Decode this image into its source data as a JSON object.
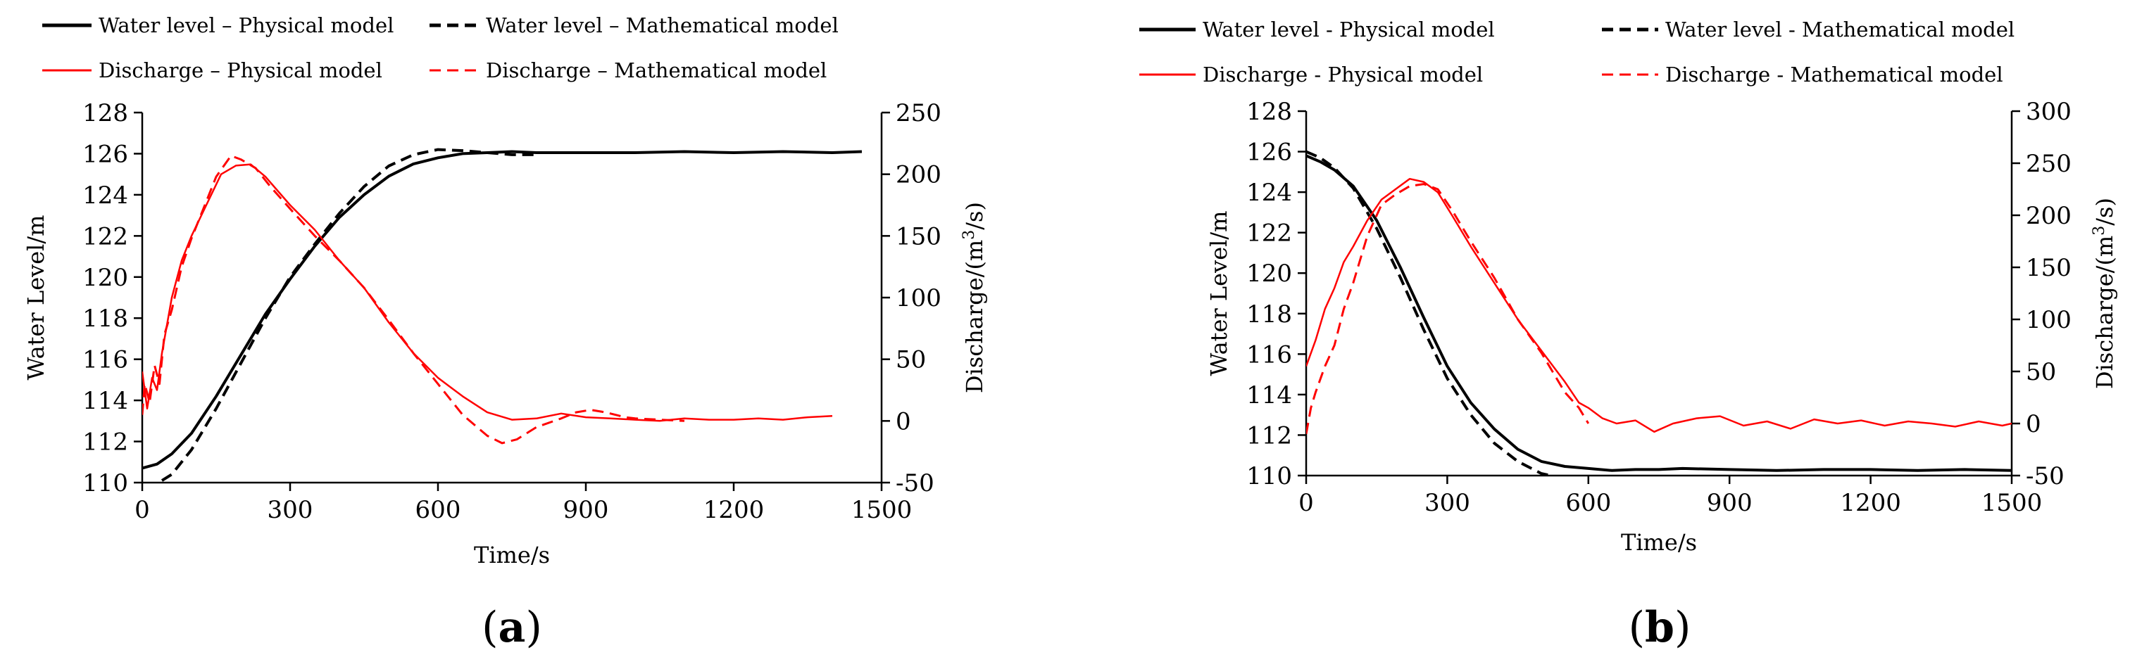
{
  "chart_data": [
    {
      "type": "line",
      "panel_label": "a",
      "xlabel": "Time/s",
      "ylabel_left": "Water Level/m",
      "ylabel_right_prefix": "Discharge/(m",
      "ylabel_right_sup": "3",
      "ylabel_right_suffix": "/s)",
      "xlim": [
        0,
        1500
      ],
      "xticks": [
        0,
        300,
        600,
        900,
        1200,
        1500
      ],
      "ylim_left": [
        110,
        128
      ],
      "yticks_left": [
        110,
        112,
        114,
        116,
        118,
        120,
        122,
        124,
        126,
        128
      ],
      "ylim_right": [
        -50,
        250
      ],
      "yticks_right": [
        -50,
        0,
        50,
        100,
        150,
        200,
        250
      ],
      "legend": [
        {
          "label": "Water level – Physical model",
          "color": "#000000",
          "style": "solid",
          "axis": "left"
        },
        {
          "label": "Water level – Mathematical model",
          "color": "#000000",
          "style": "dashed",
          "axis": "left"
        },
        {
          "label": "Discharge – Physical model",
          "color": "#ff0000",
          "style": "solid",
          "axis": "right"
        },
        {
          "label": "Discharge – Mathematical model",
          "color": "#ff0000",
          "style": "dashed",
          "axis": "right"
        }
      ],
      "series": [
        {
          "name": "Water level – Physical model",
          "axis": "left",
          "color": "#000000",
          "style": "solid",
          "width": 4,
          "x": [
            0,
            30,
            60,
            100,
            150,
            200,
            250,
            300,
            350,
            400,
            450,
            500,
            550,
            600,
            650,
            700,
            750,
            800,
            900,
            1000,
            1100,
            1200,
            1300,
            1400,
            1460
          ],
          "y": [
            110.7,
            110.9,
            111.4,
            112.4,
            114.2,
            116.2,
            118.2,
            119.9,
            121.5,
            122.9,
            124.0,
            124.9,
            125.5,
            125.8,
            126.0,
            126.05,
            126.1,
            126.05,
            126.05,
            126.05,
            126.1,
            126.05,
            126.1,
            126.05,
            126.1
          ]
        },
        {
          "name": "Water level – Mathematical model",
          "axis": "left",
          "color": "#000000",
          "style": "dashed",
          "width": 4,
          "x": [
            40,
            60,
            100,
            150,
            200,
            250,
            300,
            350,
            400,
            450,
            500,
            550,
            600,
            650,
            700,
            750,
            800
          ],
          "y": [
            110.1,
            110.4,
            111.6,
            113.6,
            115.8,
            118.0,
            120.0,
            121.6,
            123.1,
            124.4,
            125.4,
            125.95,
            126.2,
            126.15,
            126.05,
            125.95,
            125.95
          ]
        },
        {
          "name": "Discharge – Physical model",
          "axis": "right",
          "color": "#ff0000",
          "style": "solid",
          "width": 2.5,
          "x": [
            0,
            10,
            20,
            30,
            40,
            60,
            80,
            100,
            130,
            160,
            190,
            220,
            250,
            300,
            350,
            400,
            450,
            500,
            550,
            600,
            650,
            700,
            750,
            800,
            850,
            900,
            950,
            1000,
            1050,
            1100,
            1150,
            1200,
            1250,
            1300,
            1350,
            1400
          ],
          "y": [
            40,
            10,
            35,
            25,
            55,
            100,
            130,
            150,
            175,
            200,
            207,
            208,
            198,
            175,
            155,
            130,
            108,
            80,
            55,
            35,
            20,
            7,
            1,
            2,
            6,
            3,
            2,
            1,
            0,
            2,
            1,
            1,
            2,
            1,
            3,
            4
          ]
        },
        {
          "name": "Discharge – Mathematical model",
          "axis": "right",
          "color": "#ff0000",
          "style": "dashed",
          "width": 3,
          "x": [
            0,
            5,
            15,
            25,
            35,
            45,
            60,
            80,
            100,
            120,
            150,
            180,
            200,
            230,
            260,
            300,
            350,
            400,
            450,
            500,
            550,
            600,
            650,
            700,
            730,
            760,
            800,
            850,
            880,
            910,
            940,
            980,
            1000,
            1050,
            1100
          ],
          "y": [
            5,
            30,
            15,
            45,
            30,
            70,
            90,
            125,
            148,
            168,
            198,
            215,
            212,
            205,
            190,
            172,
            150,
            130,
            108,
            82,
            55,
            30,
            5,
            -12,
            -18,
            -15,
            -5,
            2,
            7,
            9,
            7,
            3,
            2,
            1,
            0
          ]
        }
      ]
    },
    {
      "type": "line",
      "panel_label": "b",
      "xlabel": "Time/s",
      "ylabel_left": "Water Level/m",
      "ylabel_right_prefix": "Discharge/(m",
      "ylabel_right_sup": "3",
      "ylabel_right_suffix": "/s)",
      "xlim": [
        0,
        1500
      ],
      "xticks": [
        0,
        300,
        600,
        900,
        1200,
        1500
      ],
      "ylim_left": [
        110,
        128
      ],
      "yticks_left": [
        110,
        112,
        114,
        116,
        118,
        120,
        122,
        124,
        126,
        128
      ],
      "ylim_right": [
        -50,
        300
      ],
      "yticks_right": [
        -50,
        0,
        50,
        100,
        150,
        200,
        250,
        300
      ],
      "legend": [
        {
          "label": "Water level - Physical model",
          "color": "#000000",
          "style": "solid",
          "axis": "left"
        },
        {
          "label": "Water level - Mathematical model",
          "color": "#000000",
          "style": "dashed",
          "axis": "left"
        },
        {
          "label": "Discharge - Physical model",
          "color": "#ff0000",
          "style": "solid",
          "axis": "right"
        },
        {
          "label": "Discharge - Mathematical model",
          "color": "#ff0000",
          "style": "dashed",
          "axis": "right"
        }
      ],
      "series": [
        {
          "name": "Water level - Physical model",
          "axis": "left",
          "color": "#000000",
          "style": "solid",
          "width": 4,
          "x": [
            0,
            30,
            60,
            100,
            150,
            200,
            250,
            300,
            350,
            400,
            450,
            500,
            550,
            600,
            650,
            700,
            750,
            800,
            900,
            1000,
            1100,
            1200,
            1300,
            1400,
            1500
          ],
          "y": [
            125.8,
            125.5,
            125.1,
            124.3,
            122.6,
            120.3,
            117.8,
            115.4,
            113.6,
            112.3,
            111.3,
            110.7,
            110.45,
            110.35,
            110.25,
            110.3,
            110.3,
            110.35,
            110.3,
            110.25,
            110.3,
            110.3,
            110.25,
            110.3,
            110.25
          ]
        },
        {
          "name": "Water level - Mathematical model",
          "axis": "left",
          "color": "#000000",
          "style": "dashed",
          "width": 4,
          "x": [
            0,
            30,
            60,
            100,
            150,
            200,
            250,
            300,
            350,
            400,
            450,
            500,
            520
          ],
          "y": [
            126.0,
            125.7,
            125.2,
            124.2,
            122.2,
            119.8,
            117.2,
            114.8,
            113.0,
            111.6,
            110.7,
            110.1,
            110.0
          ]
        },
        {
          "name": "Discharge - Physical model",
          "axis": "right",
          "color": "#ff0000",
          "style": "solid",
          "width": 2.5,
          "x": [
            0,
            20,
            40,
            60,
            80,
            100,
            130,
            160,
            190,
            220,
            250,
            280,
            310,
            350,
            400,
            450,
            500,
            550,
            580,
            600,
            630,
            660,
            700,
            740,
            780,
            830,
            880,
            930,
            980,
            1030,
            1080,
            1130,
            1180,
            1230,
            1280,
            1330,
            1380,
            1430,
            1480,
            1500
          ],
          "y": [
            55,
            80,
            110,
            130,
            155,
            170,
            195,
            215,
            225,
            235,
            232,
            222,
            200,
            170,
            135,
            100,
            70,
            40,
            20,
            15,
            5,
            0,
            3,
            -8,
            0,
            5,
            7,
            -2,
            2,
            -5,
            4,
            0,
            3,
            -2,
            2,
            0,
            -3,
            2,
            -2,
            0
          ]
        },
        {
          "name": "Discharge - Mathematical model",
          "axis": "right",
          "color": "#ff0000",
          "style": "dashed",
          "width": 3,
          "x": [
            0,
            10,
            20,
            40,
            60,
            80,
            100,
            130,
            160,
            190,
            220,
            250,
            280,
            310,
            350,
            400,
            450,
            500,
            550,
            580,
            600
          ],
          "y": [
            -10,
            15,
            30,
            55,
            75,
            110,
            135,
            180,
            210,
            220,
            228,
            230,
            225,
            205,
            175,
            140,
            100,
            68,
            30,
            15,
            0
          ]
        }
      ]
    }
  ]
}
